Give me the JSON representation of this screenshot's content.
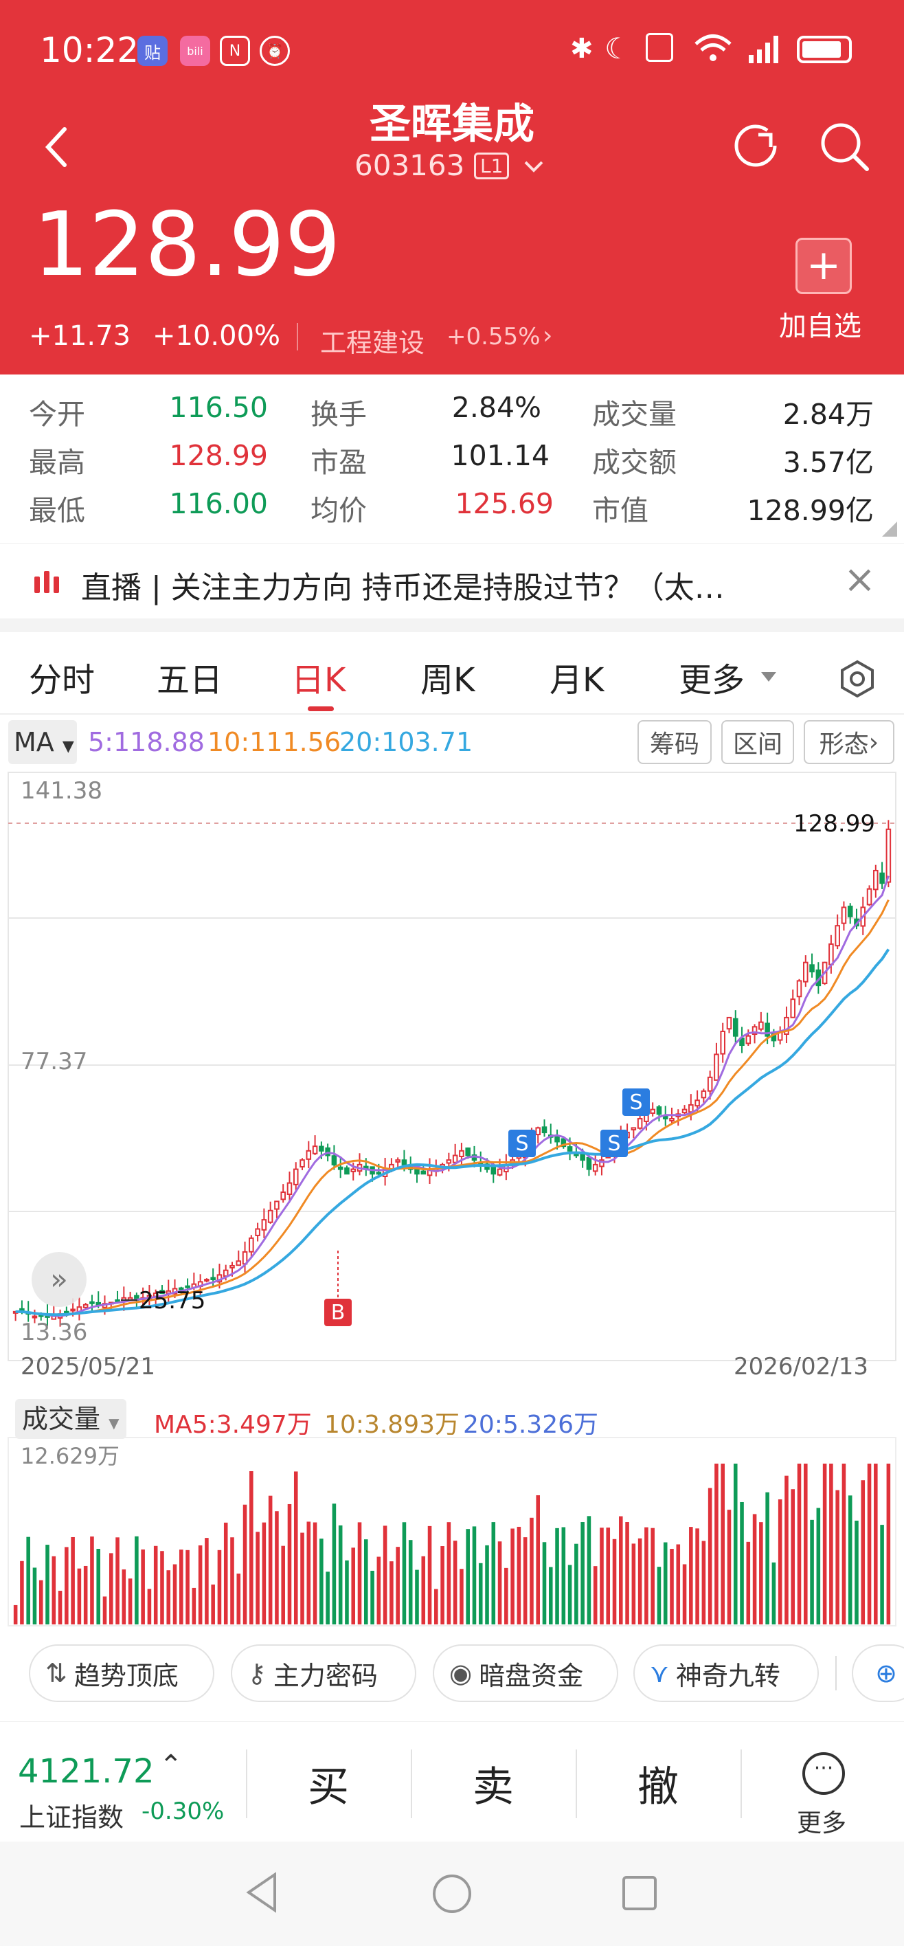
{
  "status_bar": {
    "time": "10:22"
  },
  "header": {
    "title": "圣晖集成",
    "code": "603163",
    "level": "L1",
    "price": "128.99",
    "change": "+11.73",
    "change_pct": "+10.00%",
    "sector": "工程建设",
    "sector_pct": "+0.55%",
    "add_watch": "加自选"
  },
  "quote": {
    "row1": [
      {
        "label": "今开",
        "value": "116.50",
        "color": "green"
      },
      {
        "label": "换手",
        "value": "2.84%",
        "color": "black"
      },
      {
        "label": "成交量",
        "value": "2.84万",
        "color": "black"
      }
    ],
    "row2": [
      {
        "label": "最高",
        "value": "128.99",
        "color": "red"
      },
      {
        "label": "市盈",
        "value": "101.14",
        "color": "black"
      },
      {
        "label": "成交额",
        "value": "3.57亿",
        "color": "black"
      }
    ],
    "row3": [
      {
        "label": "最低",
        "value": "116.00",
        "color": "green"
      },
      {
        "label": "均价",
        "value": "125.69",
        "color": "red"
      },
      {
        "label": "市值",
        "value": "128.99亿",
        "color": "black"
      }
    ]
  },
  "live": {
    "text": "直播 | 关注主力方向 持币还是持股过节？（太…"
  },
  "tabs": [
    "分时",
    "五日",
    "日K",
    "周K",
    "月K",
    "更多"
  ],
  "active_tab": "日K",
  "ma_bar": {
    "label": "MA",
    "ma5": "5:118.88",
    "ma10": "10:111.56",
    "ma20": "20:103.71",
    "btn1": "筹码",
    "btn2": "区间",
    "btn3": "形态"
  },
  "chart_data": {
    "type": "candlestick",
    "y_top_label": "141.38",
    "y_mid_label": "77.37",
    "y_low_label": "13.36",
    "last_price_label": "128.99",
    "low_marker_label": "25.75",
    "x_start": "2025/05/21",
    "x_end": "2026/02/13",
    "ylim": [
      13.36,
      141.38
    ],
    "close_series": [
      24,
      24,
      23.5,
      23,
      23,
      22.8,
      23,
      23.5,
      24,
      24.5,
      25,
      25.5,
      26,
      25.5,
      25.75,
      26,
      26.5,
      27,
      27,
      26.5,
      27,
      27.5,
      28,
      28,
      28.5,
      29,
      29,
      29.5,
      30,
      30.5,
      31,
      31,
      32,
      33,
      34,
      35,
      37,
      40,
      42,
      44,
      46,
      48,
      50,
      52,
      55,
      57,
      59,
      60,
      59,
      58,
      56,
      55,
      54,
      55,
      56,
      55,
      54,
      54,
      55,
      56,
      57,
      56,
      55,
      54,
      54,
      55,
      55,
      56,
      57,
      58,
      59,
      58,
      57,
      56,
      55,
      54,
      55,
      56,
      57,
      58,
      60,
      62,
      64,
      63,
      62,
      61,
      60,
      59,
      58,
      57,
      55,
      56,
      57,
      58,
      60,
      62,
      63,
      64,
      66,
      67,
      68,
      67,
      66,
      66,
      67,
      68,
      69,
      70,
      72,
      75,
      80,
      85,
      88,
      84,
      82,
      84,
      86,
      87,
      84,
      83,
      85,
      88,
      92,
      96,
      100,
      98,
      95,
      100,
      104,
      108,
      112,
      110,
      108,
      112,
      116,
      120,
      117.26,
      128.99
    ],
    "markers": [
      {
        "label": "B",
        "color": "#e0323a"
      },
      {
        "label": "S",
        "color": "#2b7de0"
      },
      {
        "label": "S",
        "color": "#2b7de0"
      },
      {
        "label": "S",
        "color": "#2b7de0"
      }
    ],
    "ma_colors": {
      "ma5": "#a06be0",
      "ma10": "#f08a24",
      "ma20": "#35a8e0"
    }
  },
  "volume": {
    "label": "成交量",
    "ma5": "MA5:3.497万",
    "ma10": "10:3.893万",
    "ma20": "20:5.326万",
    "max_label": "12.629万"
  },
  "tools": [
    "趋势顶底",
    "主力密码",
    "暗盘资金",
    "神奇九转"
  ],
  "bottom": {
    "index_value": "4121.72",
    "index_name": "上证指数",
    "index_pct": "-0.30%",
    "buy": "买",
    "sell": "卖",
    "cancel": "撤",
    "more": "更多"
  }
}
